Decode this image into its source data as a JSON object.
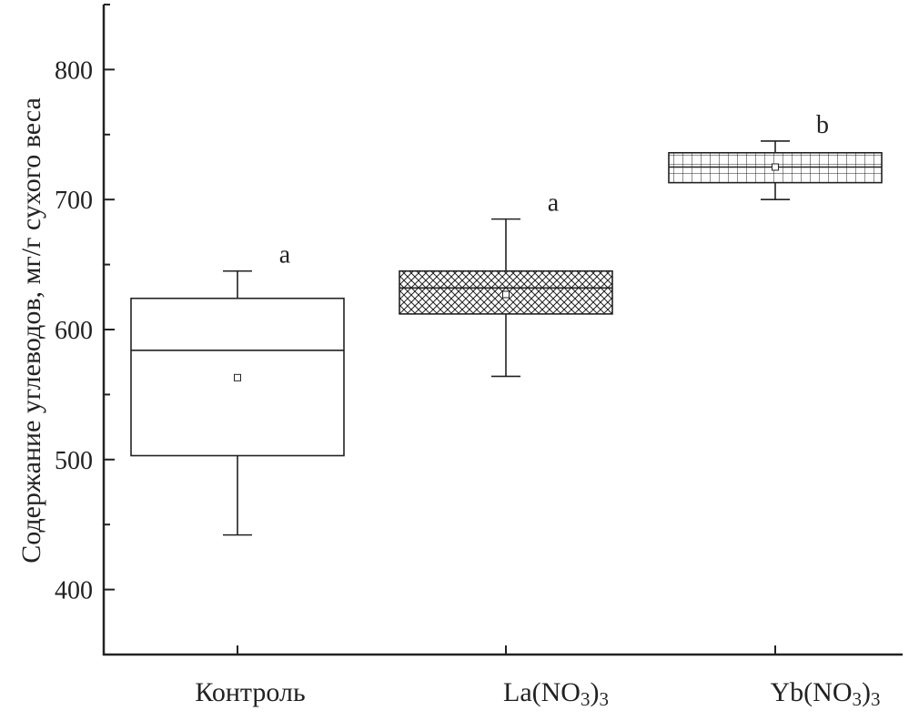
{
  "chart_data": {
    "type": "box",
    "ylabel": "Содержание углеводов, мг/г сухого веса",
    "xlabel": "",
    "ylim": [
      350,
      850
    ],
    "yticks": [
      400,
      500,
      600,
      700,
      800
    ],
    "grid": false,
    "categories": [
      {
        "label": "Контроль",
        "label_base": "Контроль",
        "label_parts": []
      },
      {
        "label": "La(NO3)3",
        "label_base": "La(NO",
        "label_parts": [
          "3",
          ")",
          "3"
        ]
      },
      {
        "label": "Yb(NO3)3",
        "label_base": "Yb(NO",
        "label_parts": [
          "3",
          ")",
          "3"
        ]
      }
    ],
    "boxes": [
      {
        "category": "Контроль",
        "whisker_low": 442,
        "q1": 503,
        "median": 584,
        "q3": 624,
        "whisker_high": 645,
        "mean": 563,
        "significance": "a",
        "pattern": "none"
      },
      {
        "category": "La(NO3)3",
        "whisker_low": 564,
        "q1": 612,
        "median": 632,
        "q3": 645,
        "whisker_high": 685,
        "mean": 627,
        "significance": "a",
        "pattern": "crosshatch"
      },
      {
        "category": "Yb(NO3)3",
        "whisker_low": 700,
        "q1": 713,
        "median": 725,
        "q3": 736,
        "whisker_high": 745,
        "mean": 725,
        "significance": "b",
        "pattern": "grid"
      }
    ]
  }
}
